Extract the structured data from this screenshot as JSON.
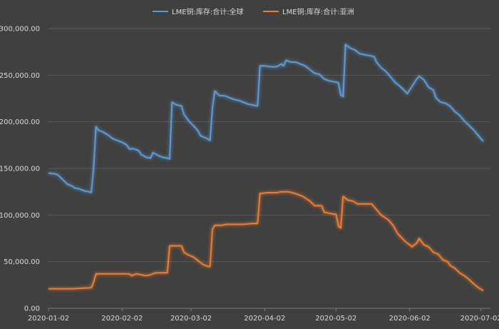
{
  "chart_data": {
    "type": "line",
    "title": "",
    "xlabel": "",
    "ylabel": "",
    "ylim": [
      0,
      300000
    ],
    "yticks": [
      0,
      50000,
      100000,
      150000,
      200000,
      250000,
      300000
    ],
    "ytick_labels": [
      "0.00",
      "50,000.00",
      "100,000.00",
      "150,000.00",
      "200,000.00",
      "250,000.00",
      "300,000.00"
    ],
    "xlim": [
      "2020-01-02",
      "2020-07-06"
    ],
    "xticks": [
      "2020-01-02",
      "2020-02-02",
      "2020-03-02",
      "2020-04-02",
      "2020-05-02",
      "2020-06-02",
      "2020-07-02"
    ],
    "grid": true,
    "legend_position": "top",
    "series": [
      {
        "name": "LME铜:库存:合计:全球",
        "color": "#5b9bd5",
        "points": [
          [
            "2020-01-02",
            145000
          ],
          [
            "2020-01-05",
            144000
          ],
          [
            "2020-01-06",
            143000
          ],
          [
            "2020-01-08",
            138000
          ],
          [
            "2020-01-10",
            133000
          ],
          [
            "2020-01-12",
            131000
          ],
          [
            "2020-01-13",
            129000
          ],
          [
            "2020-01-15",
            128000
          ],
          [
            "2020-01-17",
            126000
          ],
          [
            "2020-01-19",
            125000
          ],
          [
            "2020-01-20",
            124000
          ],
          [
            "2020-01-21",
            150000
          ],
          [
            "2020-01-22",
            195000
          ],
          [
            "2020-01-23",
            191000
          ],
          [
            "2020-01-25",
            189000
          ],
          [
            "2020-01-27",
            186000
          ],
          [
            "2020-01-29",
            182000
          ],
          [
            "2020-01-31",
            180000
          ],
          [
            "2020-02-02",
            178000
          ],
          [
            "2020-02-04",
            175000
          ],
          [
            "2020-02-05",
            171000
          ],
          [
            "2020-02-07",
            171000
          ],
          [
            "2020-02-09",
            169000
          ],
          [
            "2020-02-10",
            165000
          ],
          [
            "2020-02-12",
            162000
          ],
          [
            "2020-02-14",
            161000
          ],
          [
            "2020-02-15",
            167000
          ],
          [
            "2020-02-17",
            164000
          ],
          [
            "2020-02-19",
            162000
          ],
          [
            "2020-02-21",
            161000
          ],
          [
            "2020-02-22",
            160000
          ],
          [
            "2020-02-23",
            221000
          ],
          [
            "2020-02-25",
            218000
          ],
          [
            "2020-02-27",
            217000
          ],
          [
            "2020-02-28",
            208000
          ],
          [
            "2020-03-01",
            201000
          ],
          [
            "2020-03-03",
            196000
          ],
          [
            "2020-03-05",
            190000
          ],
          [
            "2020-03-06",
            185000
          ],
          [
            "2020-03-08",
            183000
          ],
          [
            "2020-03-10",
            180000
          ],
          [
            "2020-03-11",
            215000
          ],
          [
            "2020-03-12",
            233000
          ],
          [
            "2020-03-14",
            228000
          ],
          [
            "2020-03-16",
            228000
          ],
          [
            "2020-03-18",
            226000
          ],
          [
            "2020-03-20",
            224000
          ],
          [
            "2020-03-22",
            223000
          ],
          [
            "2020-03-24",
            221000
          ],
          [
            "2020-03-26",
            219000
          ],
          [
            "2020-03-28",
            218000
          ],
          [
            "2020-03-30",
            217000
          ],
          [
            "2020-03-31",
            260000
          ],
          [
            "2020-04-02",
            260000
          ],
          [
            "2020-04-05",
            259000
          ],
          [
            "2020-04-07",
            259000
          ],
          [
            "2020-04-09",
            262000
          ],
          [
            "2020-04-10",
            260000
          ],
          [
            "2020-04-11",
            266000
          ],
          [
            "2020-04-13",
            264000
          ],
          [
            "2020-04-15",
            264000
          ],
          [
            "2020-04-17",
            262000
          ],
          [
            "2020-04-19",
            260000
          ],
          [
            "2020-04-21",
            256000
          ],
          [
            "2020-04-23",
            252000
          ],
          [
            "2020-04-25",
            251000
          ],
          [
            "2020-04-27",
            246000
          ],
          [
            "2020-04-29",
            244000
          ],
          [
            "2020-05-01",
            243000
          ],
          [
            "2020-05-03",
            242000
          ],
          [
            "2020-05-04",
            229000
          ],
          [
            "2020-05-05",
            227000
          ],
          [
            "2020-05-06",
            283000
          ],
          [
            "2020-05-08",
            279000
          ],
          [
            "2020-05-10",
            277000
          ],
          [
            "2020-05-12",
            273000
          ],
          [
            "2020-05-14",
            272000
          ],
          [
            "2020-05-16",
            271000
          ],
          [
            "2020-05-18",
            270000
          ],
          [
            "2020-05-19",
            264000
          ],
          [
            "2020-05-21",
            258000
          ],
          [
            "2020-05-23",
            254000
          ],
          [
            "2020-05-25",
            248000
          ],
          [
            "2020-05-27",
            242000
          ],
          [
            "2020-05-29",
            238000
          ],
          [
            "2020-05-31",
            233000
          ],
          [
            "2020-06-01",
            230000
          ],
          [
            "2020-06-03",
            238000
          ],
          [
            "2020-06-05",
            246000
          ],
          [
            "2020-06-06",
            249000
          ],
          [
            "2020-06-08",
            245000
          ],
          [
            "2020-06-10",
            237000
          ],
          [
            "2020-06-12",
            234000
          ],
          [
            "2020-06-13",
            226000
          ],
          [
            "2020-06-15",
            221000
          ],
          [
            "2020-06-17",
            220000
          ],
          [
            "2020-06-19",
            217000
          ],
          [
            "2020-06-21",
            211000
          ],
          [
            "2020-06-23",
            207000
          ],
          [
            "2020-06-25",
            201000
          ],
          [
            "2020-06-27",
            196000
          ],
          [
            "2020-06-29",
            191000
          ],
          [
            "2020-07-01",
            185000
          ],
          [
            "2020-07-03",
            179000
          ]
        ]
      },
      {
        "name": "LME铜:库存:合计:亚洲",
        "color": "#ed7d31",
        "points": [
          [
            "2020-01-02",
            21000
          ],
          [
            "2020-01-05",
            21000
          ],
          [
            "2020-01-08",
            21000
          ],
          [
            "2020-01-12",
            21000
          ],
          [
            "2020-01-16",
            21500
          ],
          [
            "2020-01-20",
            22000
          ],
          [
            "2020-01-21",
            28000
          ],
          [
            "2020-01-22",
            37000
          ],
          [
            "2020-01-26",
            37000
          ],
          [
            "2020-01-30",
            37000
          ],
          [
            "2020-02-03",
            37000
          ],
          [
            "2020-02-05",
            37000
          ],
          [
            "2020-02-06",
            35000
          ],
          [
            "2020-02-08",
            37000
          ],
          [
            "2020-02-10",
            36000
          ],
          [
            "2020-02-12",
            35000
          ],
          [
            "2020-02-14",
            36000
          ],
          [
            "2020-02-16",
            38000
          ],
          [
            "2020-02-18",
            38000
          ],
          [
            "2020-02-21",
            38000
          ],
          [
            "2020-02-22",
            67000
          ],
          [
            "2020-02-24",
            67000
          ],
          [
            "2020-02-27",
            67000
          ],
          [
            "2020-02-28",
            60000
          ],
          [
            "2020-03-01",
            57000
          ],
          [
            "2020-03-03",
            55000
          ],
          [
            "2020-03-05",
            51000
          ],
          [
            "2020-03-07",
            47000
          ],
          [
            "2020-03-09",
            45000
          ],
          [
            "2020-03-10",
            45000
          ],
          [
            "2020-03-11",
            85000
          ],
          [
            "2020-03-12",
            89000
          ],
          [
            "2020-03-15",
            89000
          ],
          [
            "2020-03-17",
            90000
          ],
          [
            "2020-03-20",
            90000
          ],
          [
            "2020-03-24",
            90000
          ],
          [
            "2020-03-28",
            91000
          ],
          [
            "2020-03-30",
            91000
          ],
          [
            "2020-03-31",
            123000
          ],
          [
            "2020-04-03",
            124000
          ],
          [
            "2020-04-07",
            124000
          ],
          [
            "2020-04-09",
            125000
          ],
          [
            "2020-04-12",
            125000
          ],
          [
            "2020-04-15",
            123000
          ],
          [
            "2020-04-18",
            120000
          ],
          [
            "2020-04-21",
            115000
          ],
          [
            "2020-04-23",
            110000
          ],
          [
            "2020-04-26",
            110000
          ],
          [
            "2020-04-27",
            103000
          ],
          [
            "2020-04-29",
            102000
          ],
          [
            "2020-05-01",
            101000
          ],
          [
            "2020-05-02",
            101000
          ],
          [
            "2020-05-03",
            88000
          ],
          [
            "2020-05-04",
            86000
          ],
          [
            "2020-05-05",
            120000
          ],
          [
            "2020-05-07",
            116000
          ],
          [
            "2020-05-09",
            115000
          ],
          [
            "2020-05-11",
            112000
          ],
          [
            "2020-05-14",
            112000
          ],
          [
            "2020-05-17",
            112000
          ],
          [
            "2020-05-19",
            106000
          ],
          [
            "2020-05-21",
            100000
          ],
          [
            "2020-05-24",
            95000
          ],
          [
            "2020-05-26",
            89000
          ],
          [
            "2020-05-28",
            80000
          ],
          [
            "2020-05-31",
            72000
          ],
          [
            "2020-06-03",
            66000
          ],
          [
            "2020-06-05",
            70000
          ],
          [
            "2020-06-06",
            75000
          ],
          [
            "2020-06-08",
            68000
          ],
          [
            "2020-06-10",
            66000
          ],
          [
            "2020-06-12",
            60000
          ],
          [
            "2020-06-14",
            58000
          ],
          [
            "2020-06-16",
            52000
          ],
          [
            "2020-06-18",
            50000
          ],
          [
            "2020-06-19",
            46000
          ],
          [
            "2020-06-21",
            43000
          ],
          [
            "2020-06-23",
            38000
          ],
          [
            "2020-06-25",
            35000
          ],
          [
            "2020-06-27",
            31000
          ],
          [
            "2020-06-29",
            26000
          ],
          [
            "2020-07-01",
            22000
          ],
          [
            "2020-07-03",
            19000
          ]
        ]
      }
    ]
  }
}
